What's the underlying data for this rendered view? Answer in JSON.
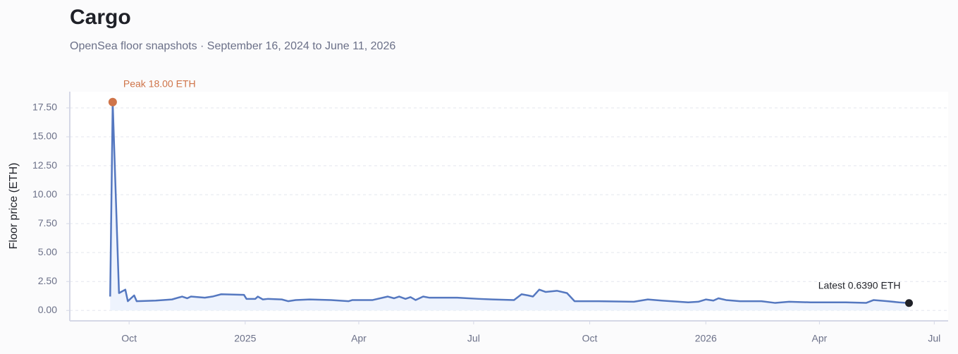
{
  "chart_data": {
    "type": "line",
    "title": "Cargo",
    "subtitle": "OpenSea floor snapshots · September 16, 2024 to June 11, 2026",
    "y_label": "Floor price (ETH)",
    "annotations": [
      "Peak 18.00 ETH",
      "Latest 0.6390 ETH"
    ],
    "color": "#5578c0",
    "area_color": "#eef3fd",
    "peak_color": "#cf7449",
    "latest_color": "#1f2128",
    "grid": true,
    "x": [
      "2024-09-16",
      "2024-09-18",
      "2024-09-23",
      "2024-09-28",
      "2024-09-30",
      "2024-10-05",
      "2024-10-07",
      "2024-10-22",
      "2024-11-04",
      "2024-11-12",
      "2024-11-16",
      "2024-11-19",
      "2024-11-30",
      "2024-12-06",
      "2024-12-13",
      "2024-12-31",
      "2025-01-02",
      "2025-01-09",
      "2025-01-11",
      "2025-01-15",
      "2025-01-19",
      "2025-01-30",
      "2025-02-04",
      "2025-02-10",
      "2025-02-21",
      "2025-03-10",
      "2025-03-24",
      "2025-03-27",
      "2025-04-12",
      "2025-04-24",
      "2025-04-29",
      "2025-05-03",
      "2025-05-08",
      "2025-05-12",
      "2025-05-16",
      "2025-05-22",
      "2025-05-27",
      "2025-06-18",
      "2025-07-05",
      "2025-07-16",
      "2025-08-02",
      "2025-08-08",
      "2025-08-13",
      "2025-08-17",
      "2025-08-22",
      "2025-08-27",
      "2025-09-05",
      "2025-09-13",
      "2025-09-19",
      "2025-10-08",
      "2025-11-05",
      "2025-11-16",
      "2025-11-27",
      "2025-12-18",
      "2025-12-26",
      "2026-01-01",
      "2026-01-07",
      "2026-01-11",
      "2026-01-17",
      "2026-01-28",
      "2026-02-14",
      "2026-02-25",
      "2026-03-08",
      "2026-03-25",
      "2026-04-22",
      "2026-05-08",
      "2026-05-14",
      "2026-05-25",
      "2026-06-03",
      "2026-06-11"
    ],
    "values": [
      1.2,
      18.0,
      1.5,
      1.8,
      0.8,
      1.3,
      0.8,
      0.85,
      0.95,
      1.2,
      1.05,
      1.2,
      1.1,
      1.2,
      1.4,
      1.35,
      1.0,
      1.0,
      1.2,
      0.95,
      1.0,
      0.95,
      0.8,
      0.9,
      0.95,
      0.9,
      0.8,
      0.9,
      0.9,
      1.2,
      1.05,
      1.2,
      1.0,
      1.15,
      0.9,
      1.2,
      1.1,
      1.1,
      1.0,
      0.95,
      0.9,
      1.4,
      1.3,
      1.2,
      1.8,
      1.6,
      1.7,
      1.5,
      0.8,
      0.8,
      0.75,
      0.95,
      0.85,
      0.7,
      0.75,
      0.95,
      0.85,
      1.05,
      0.9,
      0.8,
      0.8,
      0.65,
      0.75,
      0.7,
      0.7,
      0.65,
      0.9,
      0.8,
      0.7,
      0.639
    ],
    "xlim": [
      "2024-08-15",
      "2026-07-12"
    ],
    "xticks": [
      {
        "value": "2024-10-01",
        "label": "Oct"
      },
      {
        "value": "2025-01-01",
        "label": "2025"
      },
      {
        "value": "2025-04-01",
        "label": "Apr"
      },
      {
        "value": "2025-07-01",
        "label": "Jul"
      },
      {
        "value": "2025-10-01",
        "label": "Oct"
      },
      {
        "value": "2026-01-01",
        "label": "2026"
      },
      {
        "value": "2026-04-01",
        "label": "Apr"
      },
      {
        "value": "2026-07-01",
        "label": "Jul"
      }
    ],
    "ylim": [
      -0.9,
      18.9
    ],
    "yticks": [
      {
        "value": 0,
        "label": "0.00"
      },
      {
        "value": 2.5,
        "label": "2.50"
      },
      {
        "value": 5,
        "label": "5.00"
      },
      {
        "value": 7.5,
        "label": "7.50"
      },
      {
        "value": 10,
        "label": "10.00"
      },
      {
        "value": 12.5,
        "label": "12.50"
      },
      {
        "value": 15,
        "label": "15.00"
      },
      {
        "value": 17.5,
        "label": "17.50"
      }
    ]
  }
}
